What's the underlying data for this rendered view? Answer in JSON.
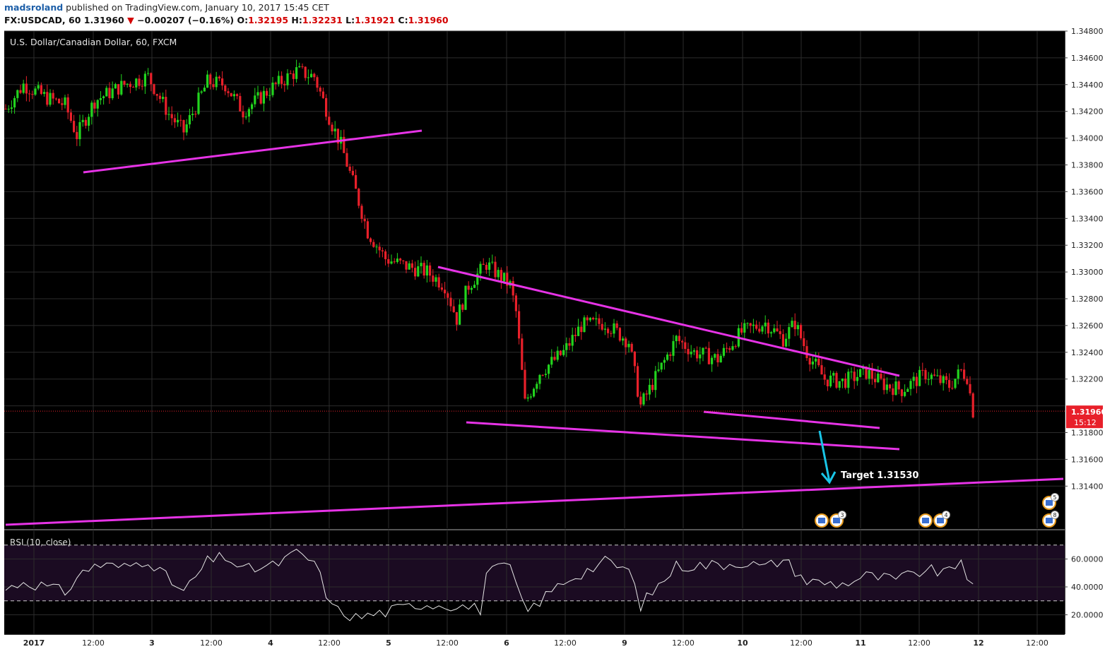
{
  "header": {
    "username": "madsroland",
    "published_text": "published on TradingView.com, January 10, 2017 15:45 CET",
    "symbol": "FX:USDCAD, 60",
    "last": "1.31960",
    "change": "−0.00207 (−0.16%)",
    "o_label": "O:",
    "o_value": "1.32195",
    "h_label": "H:",
    "h_value": "1.32231",
    "l_label": "L:",
    "l_value": "1.31921",
    "c_label": "C:",
    "c_value": "1.31960"
  },
  "colors": {
    "background": "#000000",
    "up": "#22d41e",
    "down": "#e8202a",
    "trendline": "#e633e6",
    "arrow": "#19c5e6",
    "price_tag": "#e8202a"
  },
  "chart_data": {
    "type": "candlestick",
    "title": "U.S. Dollar/Canadian Dollar, 60, FXCM",
    "price_axis": {
      "min": 1.3124,
      "max": 1.3488,
      "ticks": [
        "1.34800",
        "1.34600",
        "1.34400",
        "1.34200",
        "1.34000",
        "1.33800",
        "1.33600",
        "1.33400",
        "1.33200",
        "1.33000",
        "1.32800",
        "1.32600",
        "1.32400",
        "1.32200",
        "1.31800",
        "1.31600",
        "1.31400"
      ]
    },
    "current_price": {
      "label": "1.31960",
      "countdown": "15:12"
    },
    "time_axis": {
      "labels": [
        "2017",
        "12:00",
        "3",
        "12:00",
        "4",
        "12:00",
        "5",
        "12:00",
        "6",
        "12:00",
        "9",
        "12:00",
        "10",
        "12:00",
        "11",
        "12:00",
        "12",
        "12:00"
      ]
    },
    "key_candles": [
      {
        "time": "Jan 2 start",
        "close": 1.3422
      },
      {
        "time": "Jan 2 high",
        "high": 1.3462
      },
      {
        "time": "Jan 4 low",
        "low": 1.3288
      },
      {
        "time": "Jan 5 12:00",
        "high": 1.3312
      },
      {
        "time": "Jan 5 low",
        "low": 1.3191
      },
      {
        "time": "Jan 9 high",
        "high": 1.3276
      },
      {
        "time": "Jan 10 13:00",
        "open": 1.32195,
        "high": 1.32231,
        "low": 1.31921,
        "close": 1.3196
      }
    ],
    "annotation": {
      "text": "Target 1.31530",
      "value": 1.3153
    },
    "rsi": {
      "label": "RSI (10, close)",
      "ticks": [
        "60.0000",
        "40.0000",
        "20.0000"
      ],
      "upper_band": 70,
      "lower_band": 30,
      "last": 38
    },
    "event_badges": [
      "3",
      "4",
      "5",
      "8"
    ]
  }
}
